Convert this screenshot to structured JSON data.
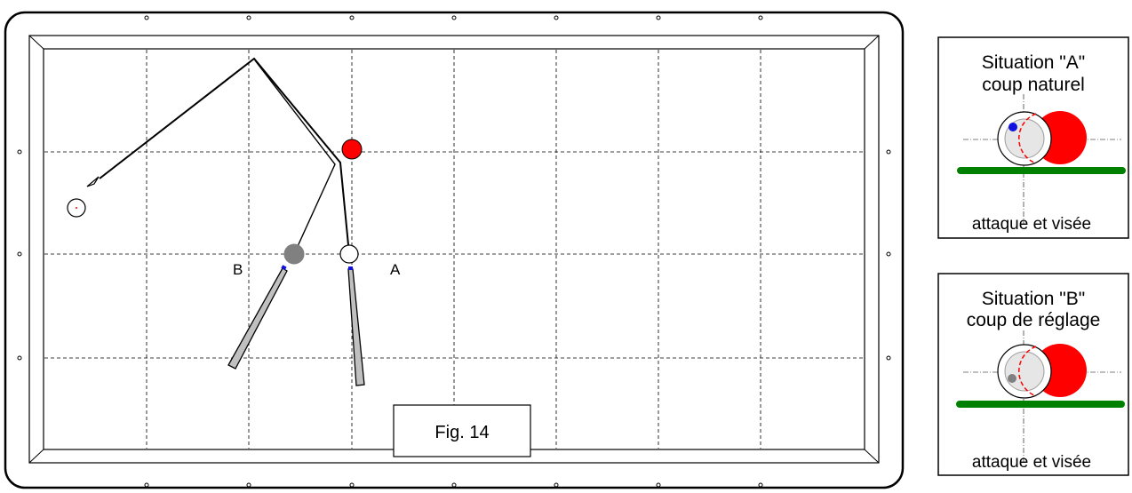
{
  "table": {
    "label_a": "A",
    "label_b": "B",
    "figure_caption": "Fig. 14"
  },
  "panel_a": {
    "title_line1": "Situation \"A\"",
    "title_line2": "coup naturel",
    "footer": "attaque et visée",
    "cue_tip_color": "#1010e0"
  },
  "panel_b": {
    "title_line1": "Situation \"B\"",
    "title_line2": "coup de réglage",
    "footer": "attaque et visée",
    "cue_tip_color": "#808080"
  },
  "colors": {
    "cloth_rail_green": "#008000",
    "red_ball": "#ff0000",
    "grey_ball": "#808080",
    "cue_stick": "#c0c0c0",
    "cue_tip": "#1010e0"
  }
}
